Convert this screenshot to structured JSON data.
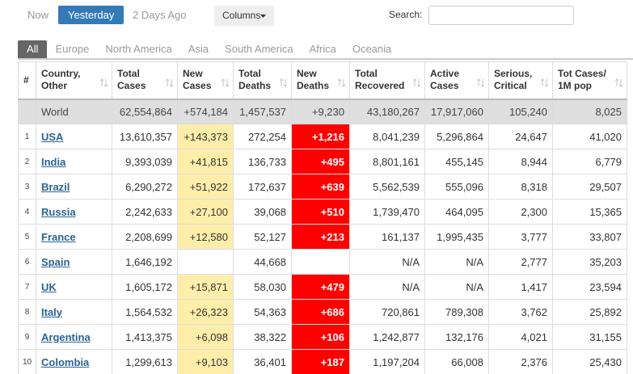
{
  "nav": {
    "day_tabs": [
      "Now",
      "Yesterday",
      "2 Days Ago"
    ],
    "active_day_tab": 1,
    "columns_button": "Columns",
    "search_label": "Search:"
  },
  "region_tabs": {
    "tabs": [
      "All",
      "Europe",
      "North America",
      "Asia",
      "South America",
      "Africa",
      "Oceania"
    ],
    "active": 0
  },
  "table": {
    "headers": [
      [
        "#"
      ],
      [
        "Country,",
        "Other"
      ],
      [
        "Total",
        "Cases"
      ],
      [
        "New",
        "Cases"
      ],
      [
        "Total",
        "Deaths"
      ],
      [
        "New",
        "Deaths"
      ],
      [
        "Total",
        "Recovered"
      ],
      [
        "Active",
        "Cases"
      ],
      [
        "Serious,",
        "Critical"
      ],
      [
        "Tot Cases/",
        "1M pop"
      ]
    ],
    "world_row": [
      null,
      "World",
      "62,554,864",
      "+574,184",
      "1,457,537",
      "+9,230",
      "43,180,267",
      "17,917,060",
      "105,240",
      "8,025"
    ],
    "rows": [
      [
        "1",
        "USA",
        "13,610,357",
        "+143,373",
        "272,254",
        "+1,216",
        "8,041,239",
        "5,296,864",
        "24,647",
        "41,020"
      ],
      [
        "2",
        "India",
        "9,393,039",
        "+41,815",
        "136,733",
        "+495",
        "8,801,161",
        "455,145",
        "8,944",
        "6,779"
      ],
      [
        "3",
        "Brazil",
        "6,290,272",
        "+51,922",
        "172,637",
        "+639",
        "5,562,539",
        "555,096",
        "8,318",
        "29,507"
      ],
      [
        "4",
        "Russia",
        "2,242,633",
        "+27,100",
        "39,068",
        "+510",
        "1,739,470",
        "464,095",
        "2,300",
        "15,365"
      ],
      [
        "5",
        "France",
        "2,208,699",
        "+12,580",
        "52,127",
        "+213",
        "161,137",
        "1,995,435",
        "3,777",
        "33,807"
      ],
      [
        "6",
        "Spain",
        "1,646,192",
        null,
        "44,668",
        null,
        "N/A",
        "N/A",
        "2,777",
        "35,203"
      ],
      [
        "7",
        "UK",
        "1,605,172",
        "+15,871",
        "58,030",
        "+479",
        "N/A",
        "N/A",
        "1,417",
        "23,594"
      ],
      [
        "8",
        "Italy",
        "1,564,532",
        "+26,323",
        "54,363",
        "+686",
        "720,861",
        "789,308",
        "3,762",
        "25,892"
      ],
      [
        "9",
        "Argentina",
        "1,413,375",
        "+6,098",
        "38,322",
        "+106",
        "1,242,877",
        "132,176",
        "4,021",
        "31,155"
      ],
      [
        "10",
        "Colombia",
        "1,299,613",
        "+9,103",
        "36,401",
        "+187",
        "1,197,204",
        "66,008",
        "2,376",
        "25,430"
      ]
    ]
  }
}
